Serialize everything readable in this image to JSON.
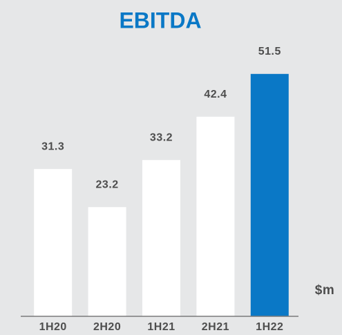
{
  "chart_data": {
    "type": "bar",
    "title": "EBITDA",
    "ylabel": "$m",
    "categories": [
      "1H20",
      "2H20",
      "1H21",
      "2H21",
      "1H22"
    ],
    "values": [
      31.3,
      23.2,
      33.2,
      42.4,
      51.5
    ],
    "colors": [
      "#ffffff",
      "#ffffff",
      "#ffffff",
      "#ffffff",
      "#0a78c6"
    ],
    "ylim": [
      0,
      60
    ]
  }
}
